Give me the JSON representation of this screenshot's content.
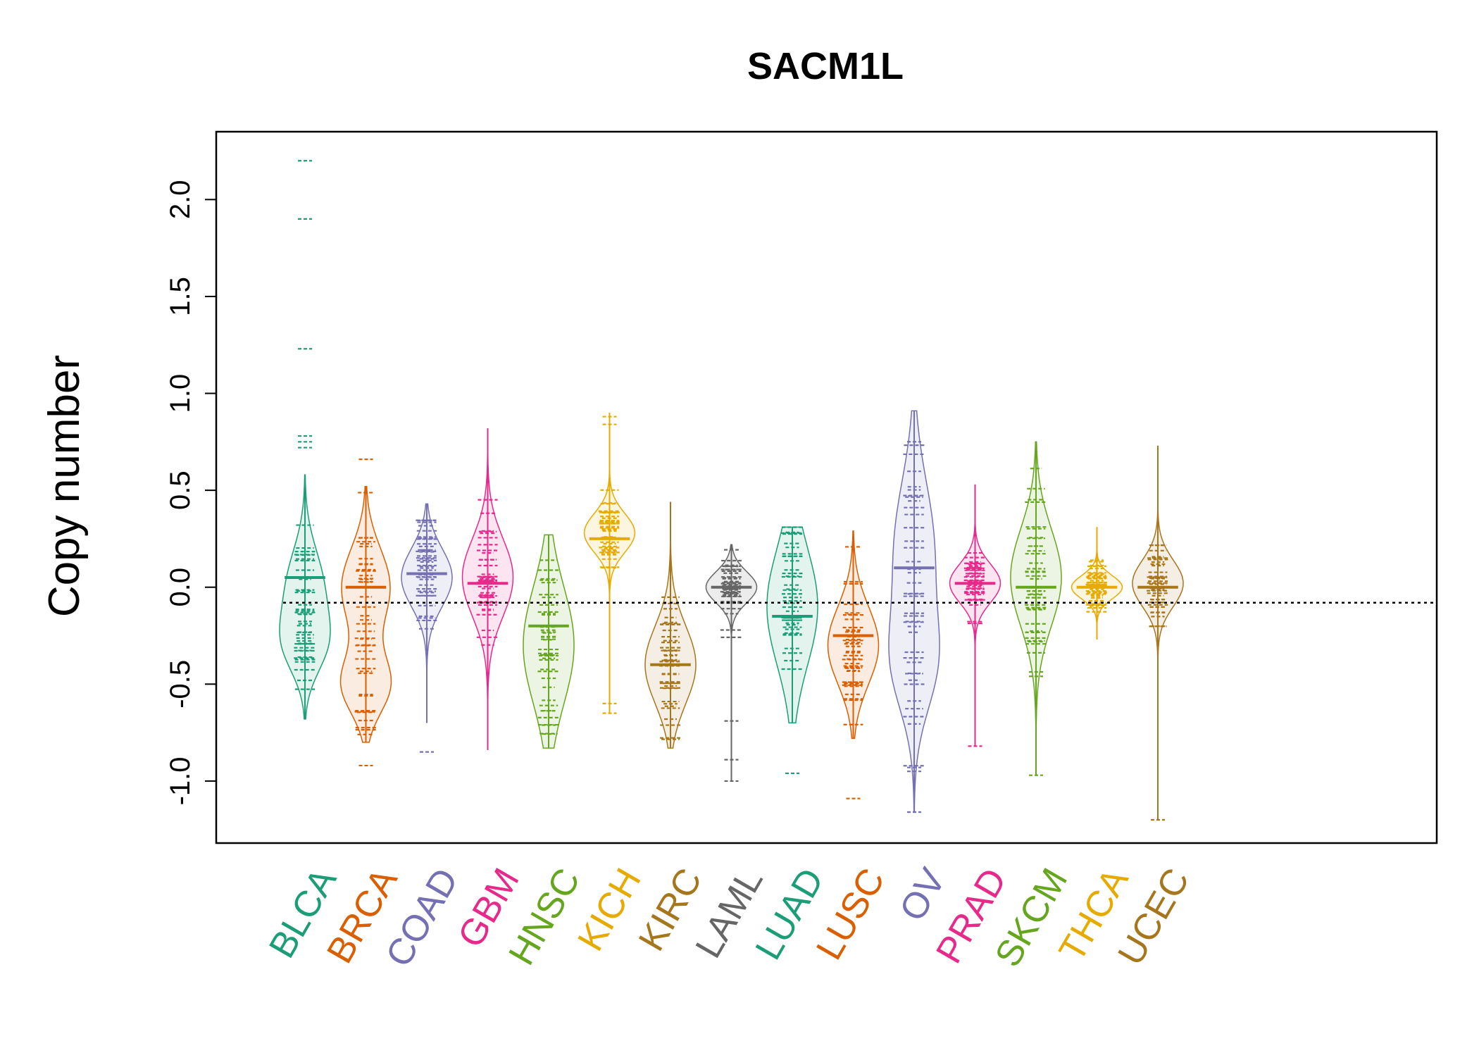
{
  "chart_data": {
    "type": "beanplot",
    "title": "SACM1L",
    "xlabel": "",
    "ylabel": "Copy number",
    "ylim": [
      -1.32,
      2.35
    ],
    "yticks": [
      2.0,
      1.5,
      1.0,
      0.5,
      0.0,
      -0.5,
      -1.0
    ],
    "ytick_labels": [
      "2.0",
      "1.5",
      "1.0",
      "0.5",
      "0.0",
      "-0.5",
      "-1.0"
    ],
    "overall_mean_line": -0.08,
    "grid": false,
    "categories": [
      "BLCA",
      "BRCA",
      "COAD",
      "GBM",
      "HNSC",
      "KICH",
      "KIRC",
      "LAML",
      "LUAD",
      "LUSC",
      "OV",
      "PRAD",
      "SKCM",
      "THCA",
      "UCEC"
    ],
    "colors": [
      "#1B9E77",
      "#D95F02",
      "#7570B3",
      "#E7298A",
      "#66A61E",
      "#E6AB02",
      "#A6761D",
      "#666666",
      "#1B9E77",
      "#D95F02",
      "#7570B3",
      "#E7298A",
      "#66A61E",
      "#E6AB02",
      "#A6761D"
    ],
    "series": [
      {
        "name": "BLCA",
        "mean": 0.05,
        "range": [
          -0.68,
          0.58
        ],
        "modes": [
          [
            0.0,
            0.2
          ],
          [
            -0.3,
            0.15
          ]
        ],
        "outliers": [
          2.2,
          1.9,
          1.23,
          0.78,
          0.75,
          0.72
        ]
      },
      {
        "name": "BRCA",
        "mean": 0.0,
        "range": [
          -0.8,
          0.52
        ],
        "modes": [
          [
            0.0,
            0.2
          ],
          [
            -0.5,
            0.15
          ]
        ],
        "outliers": [
          0.66,
          -0.92
        ]
      },
      {
        "name": "COAD",
        "mean": 0.07,
        "range": [
          -0.7,
          0.43
        ],
        "modes": [
          [
            0.05,
            0.15
          ]
        ],
        "outliers": [
          -0.85
        ]
      },
      {
        "name": "GBM",
        "mean": 0.02,
        "range": [
          -0.84,
          0.82
        ],
        "modes": [
          [
            0.05,
            0.2
          ]
        ],
        "outliers": []
      },
      {
        "name": "HNSC",
        "mean": -0.2,
        "range": [
          -0.83,
          0.27
        ],
        "modes": [
          [
            -0.3,
            0.3
          ]
        ],
        "outliers": []
      },
      {
        "name": "KICH",
        "mean": 0.25,
        "range": [
          -0.65,
          0.9
        ],
        "modes": [
          [
            0.28,
            0.1
          ]
        ],
        "outliers": [
          0.88,
          0.84,
          -0.6,
          -0.65
        ]
      },
      {
        "name": "KIRC",
        "mean": -0.4,
        "range": [
          -0.83,
          0.44
        ],
        "modes": [
          [
            -0.4,
            0.2
          ]
        ],
        "outliers": []
      },
      {
        "name": "LAML",
        "mean": 0.0,
        "range": [
          -1.0,
          0.22
        ],
        "modes": [
          [
            0.0,
            0.08
          ]
        ],
        "outliers": [
          -0.69,
          -0.89,
          -1.0
        ]
      },
      {
        "name": "LUAD",
        "mean": -0.15,
        "range": [
          -0.7,
          0.31
        ],
        "modes": [
          [
            -0.1,
            0.3
          ]
        ],
        "outliers": [
          -0.96
        ]
      },
      {
        "name": "LUSC",
        "mean": -0.25,
        "range": [
          -0.78,
          0.29
        ],
        "modes": [
          [
            -0.3,
            0.2
          ]
        ],
        "outliers": [
          -1.09
        ]
      },
      {
        "name": "OV",
        "mean": 0.1,
        "range": [
          -1.16,
          0.91
        ],
        "modes": [
          [
            0.2,
            0.35
          ],
          [
            -0.4,
            0.25
          ]
        ],
        "outliers": [
          -0.93,
          -0.95,
          -1.16
        ]
      },
      {
        "name": "PRAD",
        "mean": 0.02,
        "range": [
          -0.82,
          0.53
        ],
        "modes": [
          [
            0.02,
            0.1
          ]
        ],
        "outliers": [
          -0.82
        ]
      },
      {
        "name": "SKCM",
        "mean": 0.0,
        "range": [
          -0.97,
          0.75
        ],
        "modes": [
          [
            0.05,
            0.25
          ]
        ],
        "outliers": [
          -0.97
        ]
      },
      {
        "name": "THCA",
        "mean": 0.0,
        "range": [
          -0.27,
          0.31
        ],
        "modes": [
          [
            0.0,
            0.06
          ]
        ],
        "outliers": []
      },
      {
        "name": "UCEC",
        "mean": 0.0,
        "range": [
          -1.2,
          0.73
        ],
        "modes": [
          [
            0.02,
            0.12
          ]
        ],
        "outliers": [
          -1.2
        ]
      }
    ]
  }
}
